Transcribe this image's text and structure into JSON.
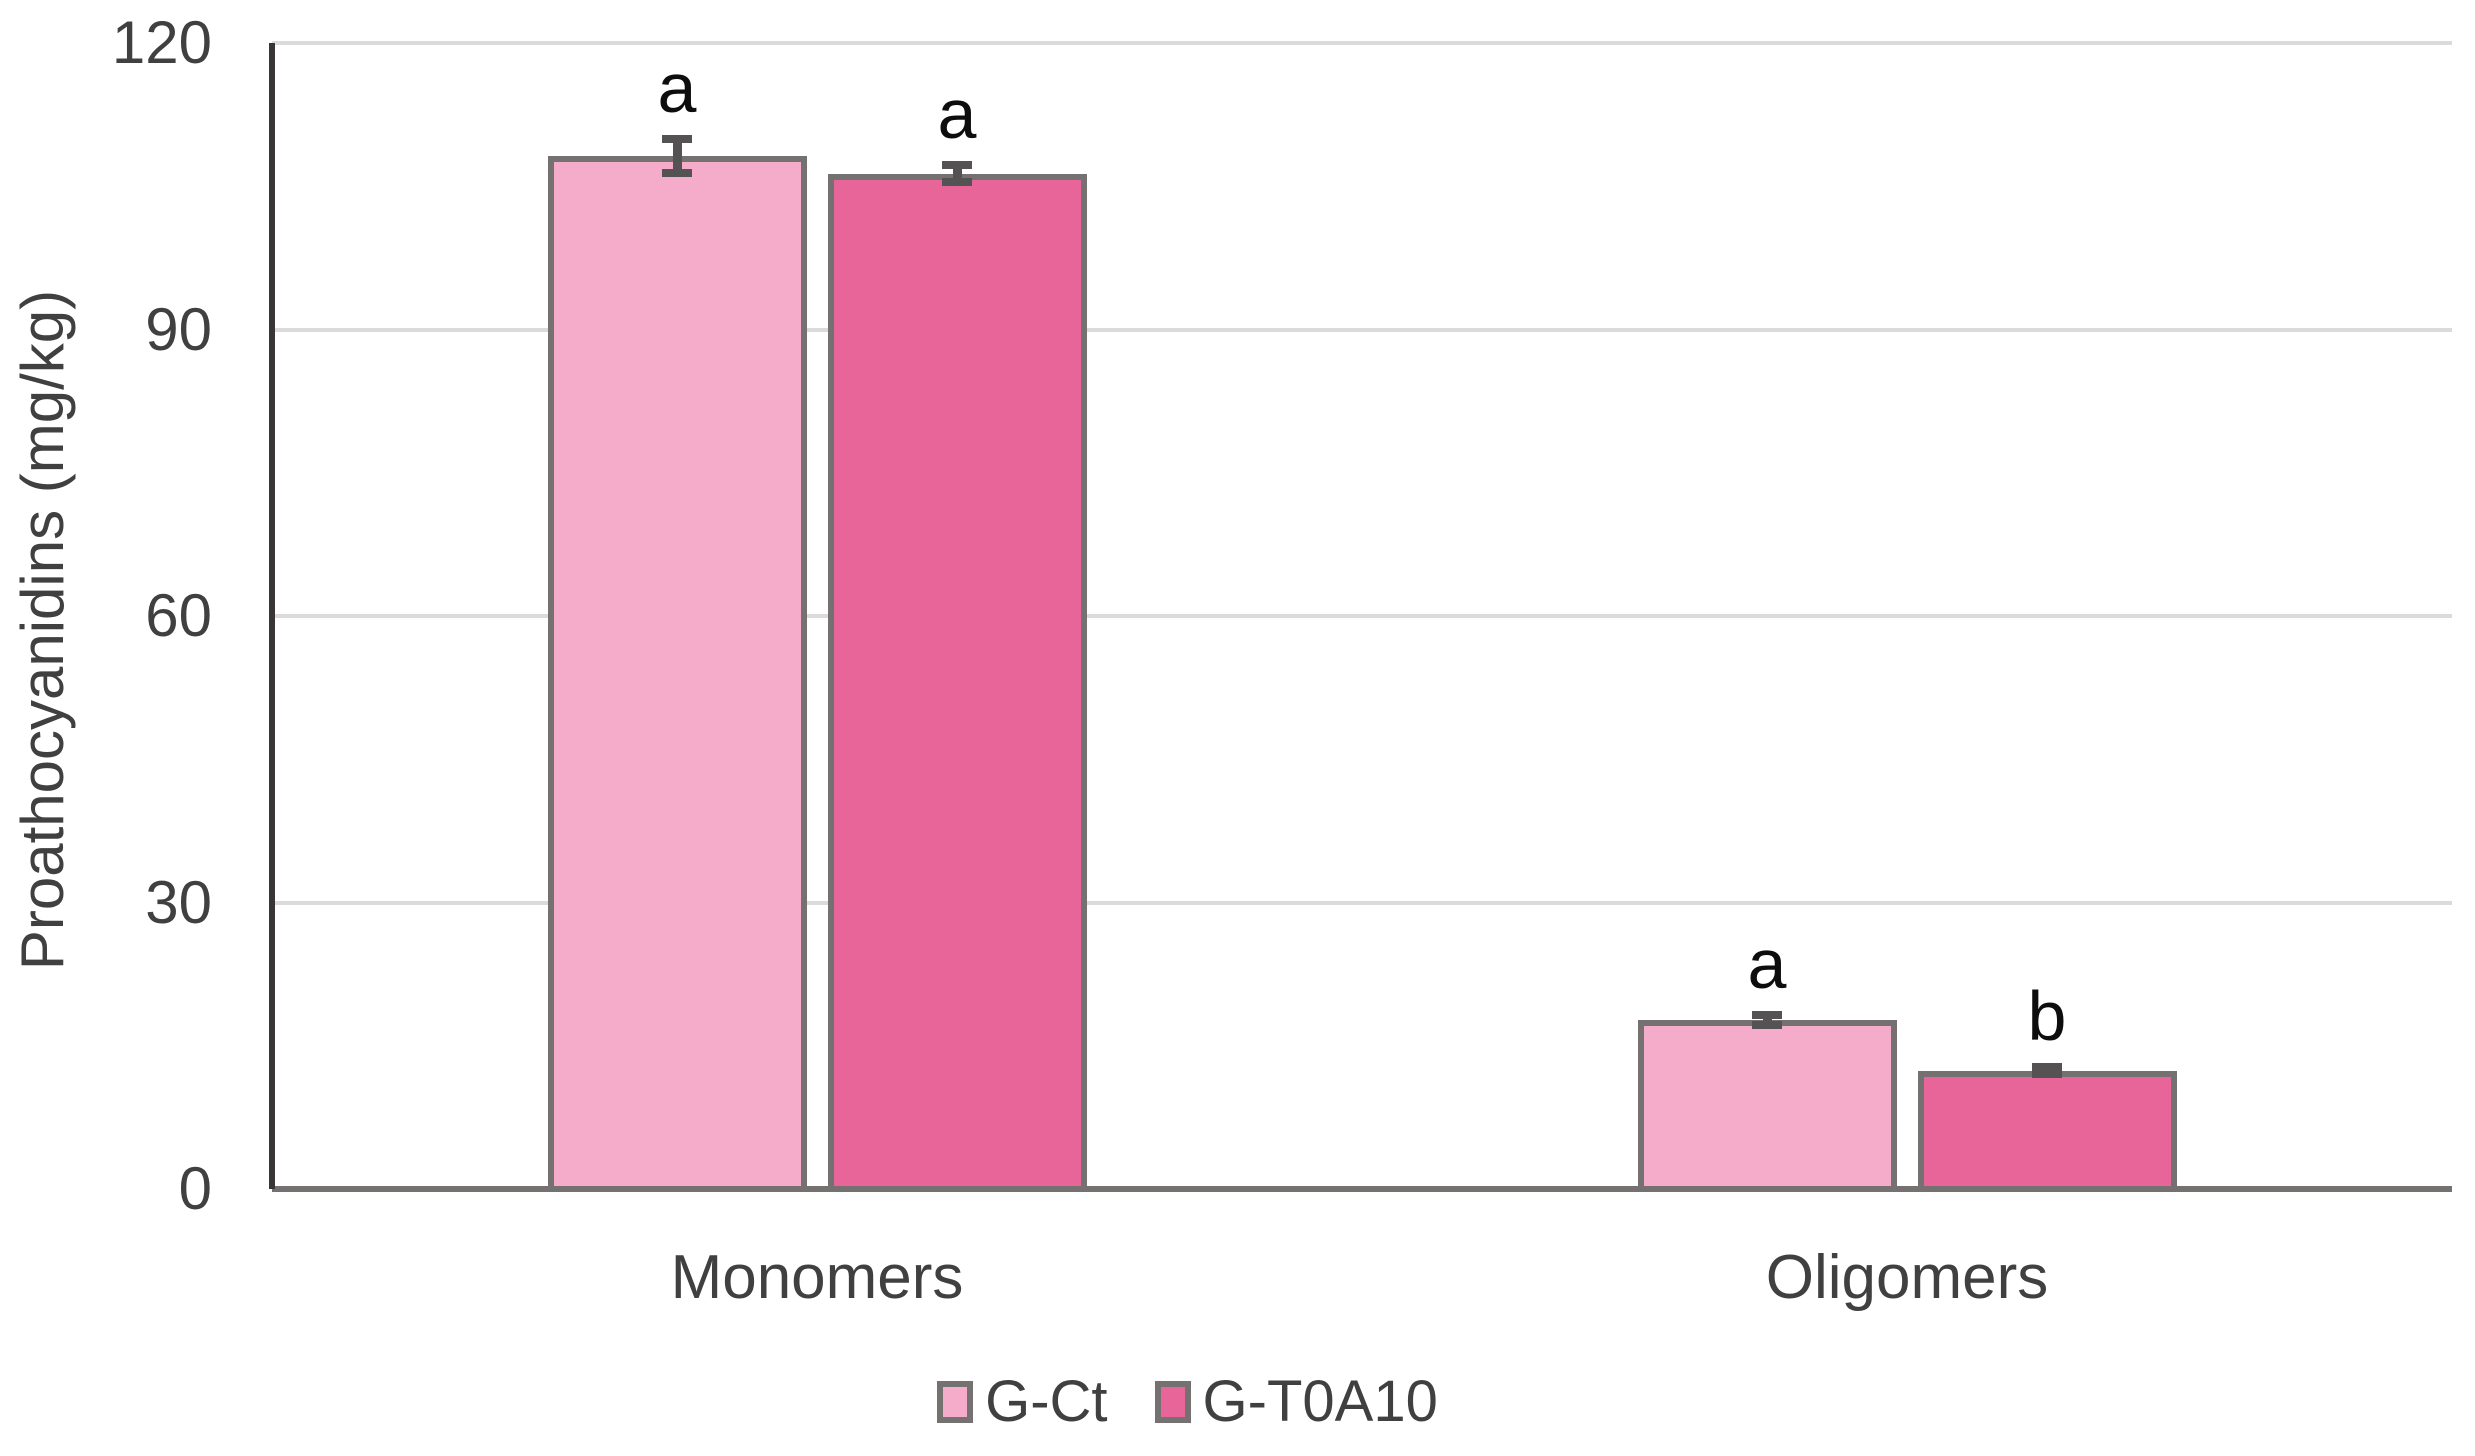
{
  "chart_data": {
    "type": "bar",
    "title": "",
    "xlabel": "",
    "ylabel": "Proathocyanidins (mg/kg)",
    "categories": [
      "Monomers",
      "Oligomers"
    ],
    "series": [
      {
        "name": "G-Ct",
        "color": "#F4ACCA",
        "values": [
          108.2,
          17.7
        ],
        "errors": [
          1.8,
          0.5
        ],
        "letters": [
          "a",
          "a"
        ]
      },
      {
        "name": "G-T0A10",
        "color": "#E8659A",
        "values": [
          106.3,
          12.4
        ],
        "errors": [
          0.9,
          0.4
        ],
        "letters": [
          "a",
          "b"
        ]
      }
    ],
    "ylim": [
      0,
      120
    ],
    "yticks": [
      0,
      30,
      60,
      90,
      120
    ],
    "grid": true,
    "legend_position": "bottom",
    "styles": {
      "gridline_color": "#DBDBDB",
      "y_axis_color": "#393536",
      "x_axis_color": "#757170",
      "bar_border_color": "#757170",
      "error_bar_color": "#555254",
      "text_color": "#404040",
      "letter_color": "#0D0D0D"
    }
  }
}
